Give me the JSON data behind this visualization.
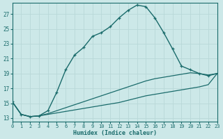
{
  "xlabel": "Humidex (Indice chaleur)",
  "bg_color": "#cce8e8",
  "line_color": "#1a6b6b",
  "grid_color": "#b8d8d8",
  "line1_x": [
    0,
    1,
    2,
    3,
    4,
    5,
    6,
    7,
    8,
    9,
    10,
    11,
    12,
    13,
    14,
    15,
    16,
    17,
    18,
    19,
    20,
    21,
    22,
    23
  ],
  "line1_y": [
    15.2,
    13.5,
    13.2,
    13.3,
    14.0,
    16.5,
    19.5,
    21.5,
    22.5,
    24.0,
    24.5,
    25.3,
    26.5,
    27.5,
    28.2,
    28.0,
    26.5,
    24.5,
    22.3,
    20.0,
    19.5,
    19.0,
    18.7,
    19.0
  ],
  "line2_x": [
    0,
    3,
    23
  ],
  "line2_y": [
    15.2,
    13.3,
    19.0
  ],
  "line3_x": [
    0,
    3,
    23
  ],
  "line3_y": [
    15.2,
    13.3,
    19.0
  ],
  "line2_full_x": [
    0,
    1,
    2,
    3,
    4,
    5,
    6,
    7,
    8,
    9,
    10,
    11,
    12,
    13,
    14,
    15,
    16,
    17,
    18,
    19,
    20,
    21,
    22,
    23
  ],
  "line2_full_y": [
    15.2,
    13.5,
    13.2,
    13.3,
    13.6,
    14.0,
    14.4,
    14.8,
    15.2,
    15.6,
    16.0,
    16.4,
    16.8,
    17.2,
    17.6,
    18.0,
    18.3,
    18.5,
    18.7,
    18.9,
    19.1,
    19.0,
    18.8,
    19.0
  ],
  "line3_full_x": [
    0,
    1,
    2,
    3,
    4,
    5,
    6,
    7,
    8,
    9,
    10,
    11,
    12,
    13,
    14,
    15,
    16,
    17,
    18,
    19,
    20,
    21,
    22,
    23
  ],
  "line3_full_y": [
    15.2,
    13.5,
    13.2,
    13.3,
    13.5,
    13.7,
    13.9,
    14.1,
    14.3,
    14.5,
    14.7,
    14.9,
    15.1,
    15.4,
    15.7,
    16.0,
    16.2,
    16.4,
    16.6,
    16.8,
    17.0,
    17.2,
    17.5,
    19.0
  ],
  "xlim": [
    0,
    23
  ],
  "ylim": [
    12.5,
    28.5
  ],
  "yticks": [
    13,
    15,
    17,
    19,
    21,
    23,
    25,
    27
  ],
  "xticks": [
    0,
    1,
    2,
    3,
    4,
    5,
    6,
    7,
    8,
    9,
    10,
    11,
    12,
    13,
    14,
    15,
    16,
    17,
    18,
    19,
    20,
    21,
    22,
    23
  ]
}
